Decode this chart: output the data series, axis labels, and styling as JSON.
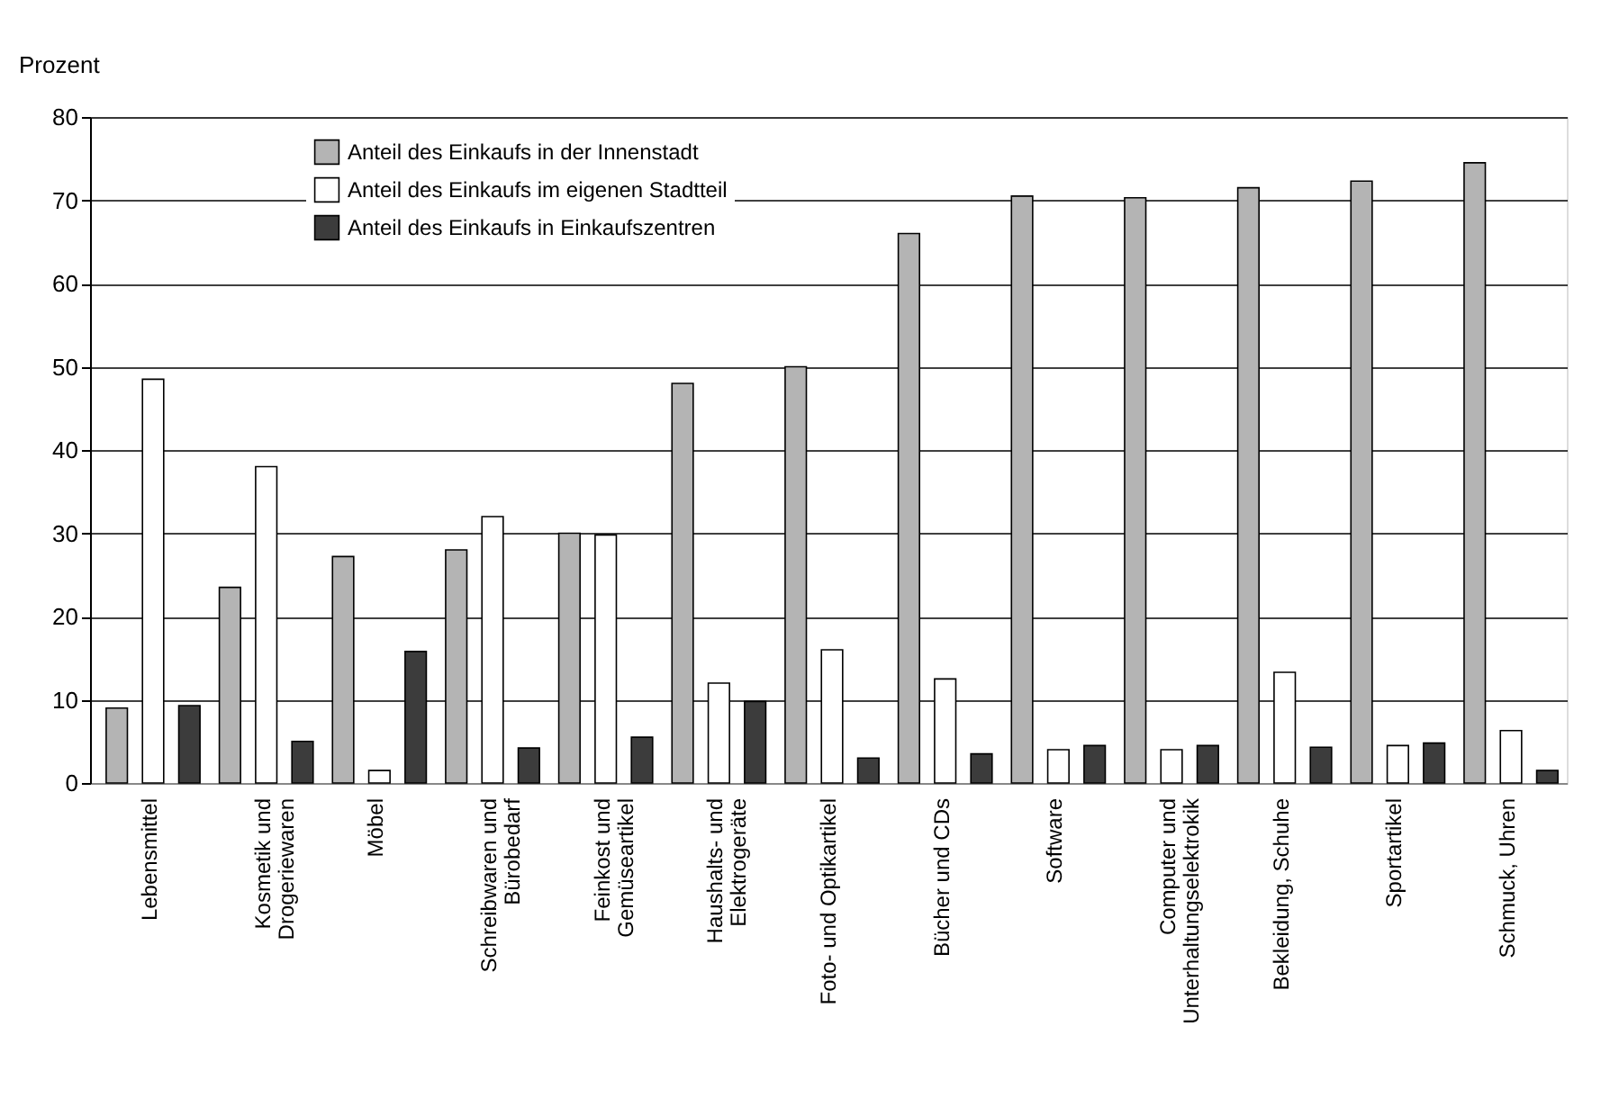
{
  "chart_data": {
    "type": "bar",
    "ylabel": "Prozent",
    "categories": [
      "Lebensmittel",
      "Kosmetik und\nDrogeriewaren",
      "Möbel",
      "Schreibwaren und\nBürobedarf",
      "Feinkost und\nGemüseartikel",
      "Haushalts- und\nElektrogeräte",
      "Foto- und Optikartikel",
      "Bücher und CDs",
      "Software",
      "Computer und\nUnterhaltungselektrokik",
      "Bekleidung, Schuhe",
      "Sportartikel",
      "Schmuck, Uhren"
    ],
    "series": [
      {
        "name": "Anteil des Einkaufs in der Innenstadt",
        "color": "#b4b4b4",
        "values": [
          9,
          23.5,
          27.2,
          28,
          30,
          48,
          50,
          66,
          70.5,
          70.3,
          71.5,
          72.3,
          74.5
        ]
      },
      {
        "name": "Anteil des Einkaufs im eigenen Stadtteil",
        "color": "#ffffff",
        "values": [
          48.5,
          38,
          1.5,
          32,
          29.8,
          12,
          16,
          12.5,
          4,
          4,
          13.3,
          4.5,
          6.3
        ]
      },
      {
        "name": "Anteil des Einkaufs in Einkaufszentren",
        "color": "#3c3c3c",
        "values": [
          9.3,
          5,
          15.8,
          4.2,
          5.5,
          9.8,
          3,
          3.5,
          4.5,
          4.5,
          4.3,
          4.8,
          1.5
        ]
      }
    ],
    "ylim": [
      0,
      80
    ],
    "yticks": [
      0,
      10,
      20,
      30,
      40,
      50,
      60,
      70,
      80
    ],
    "grid": "y",
    "legend": "top left"
  }
}
